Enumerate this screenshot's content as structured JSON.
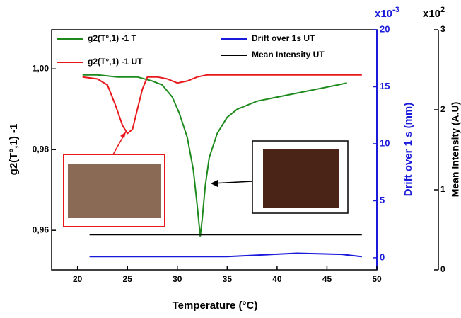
{
  "chart_data": {
    "type": "line",
    "x_label": "Temperature (°C)",
    "y_label": "g2(T°,1) -1",
    "y2_label": "Drift over 1 s (mm)",
    "y3_label": "Mean Intensity (A.U)",
    "y2_scale": {
      "base": "x10",
      "exp": "-3"
    },
    "y3_scale": {
      "base": "x10",
      "exp": "2"
    },
    "xlim": [
      17.4,
      50
    ],
    "xticks": [
      20,
      25,
      30,
      35,
      40,
      45,
      50
    ],
    "ylim": [
      0.9502,
      1.0097
    ],
    "yticks": [
      {
        "value": 0.96,
        "label": "0,96"
      },
      {
        "value": 0.98,
        "label": "0,98"
      },
      {
        "value": 1.0,
        "label": "1,00"
      }
    ],
    "y2lim": [
      -1.06,
      20
    ],
    "y2ticks": [
      0,
      5,
      10,
      15,
      20
    ],
    "y3lim": [
      0,
      3
    ],
    "y3ticks": [
      0,
      1,
      2,
      3
    ],
    "series": [
      {
        "name": "g2(T°,1) -1 T",
        "color": "#1e8a1e",
        "x": [
          20.5,
          22,
          24,
          26,
          27.5,
          28.5,
          29.5,
          30.2,
          31,
          31.6,
          32,
          32.3,
          32.5,
          32.8,
          33.2,
          34,
          35,
          36,
          38,
          40,
          42,
          44,
          46,
          47
        ],
        "values": [
          0.9985,
          0.9985,
          0.998,
          0.998,
          0.997,
          0.996,
          0.993,
          0.989,
          0.983,
          0.975,
          0.966,
          0.9585,
          0.963,
          0.971,
          0.978,
          0.984,
          0.988,
          0.99,
          0.992,
          0.993,
          0.994,
          0.995,
          0.996,
          0.9965
        ]
      },
      {
        "name": "g2(T°,1) -1 UT",
        "color": "#e8191c",
        "x": [
          20.5,
          22,
          23,
          23.8,
          24.5,
          25,
          25.5,
          26,
          26.5,
          27,
          28,
          29,
          30,
          31,
          32,
          33,
          35,
          40,
          45,
          48.5
        ],
        "values": [
          0.998,
          0.9975,
          0.996,
          0.991,
          0.986,
          0.984,
          0.985,
          0.99,
          0.995,
          0.998,
          0.998,
          0.9975,
          0.9965,
          0.997,
          0.998,
          0.9985,
          0.9985,
          0.9985,
          0.9985,
          0.9985
        ]
      },
      {
        "name": "Drift  over 1s UT",
        "color": "#1a1adb",
        "axis": "y2",
        "x": [
          21.2,
          30,
          35,
          42,
          46.5,
          48.5
        ],
        "values": [
          0.1,
          0.1,
          0.1,
          0.4,
          0.3,
          0.1
        ]
      },
      {
        "name": "Mean Intensity UT",
        "color": "#000000",
        "axis": "y3",
        "x": [
          21.2,
          48.5
        ],
        "values": [
          0.44,
          0.44
        ]
      }
    ]
  }
}
